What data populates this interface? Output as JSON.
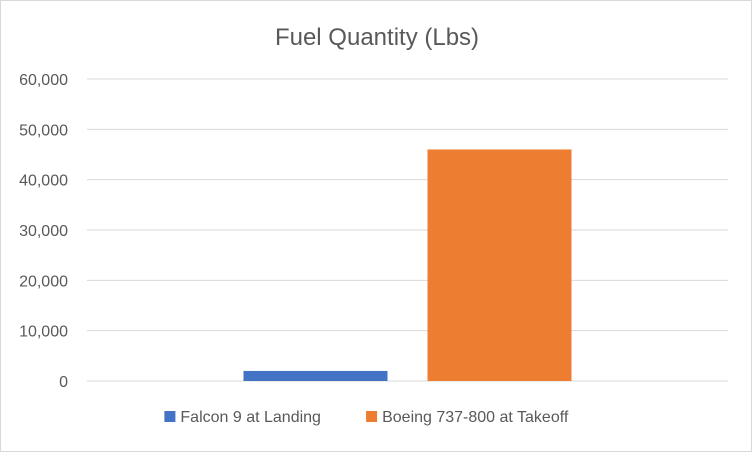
{
  "chart_data": {
    "type": "bar",
    "title": "Fuel Quantity (Lbs)",
    "xlabel": "",
    "ylabel": "",
    "ylim": [
      0,
      60000
    ],
    "y_ticks": [
      0,
      10000,
      20000,
      30000,
      40000,
      50000,
      60000
    ],
    "y_tick_labels": [
      "0",
      "10,000",
      "20,000",
      "30,000",
      "40,000",
      "50,000",
      "60,000"
    ],
    "categories": [
      ""
    ],
    "series": [
      {
        "name": "Falcon 9 at Landing",
        "values": [
          2000
        ],
        "color": "#4472C4"
      },
      {
        "name": "Boeing 737-800 at Takeoff",
        "values": [
          46000
        ],
        "color": "#ED7D31"
      }
    ],
    "grid": true,
    "legend_position": "bottom",
    "gridline_color": "#d9d9d9"
  }
}
